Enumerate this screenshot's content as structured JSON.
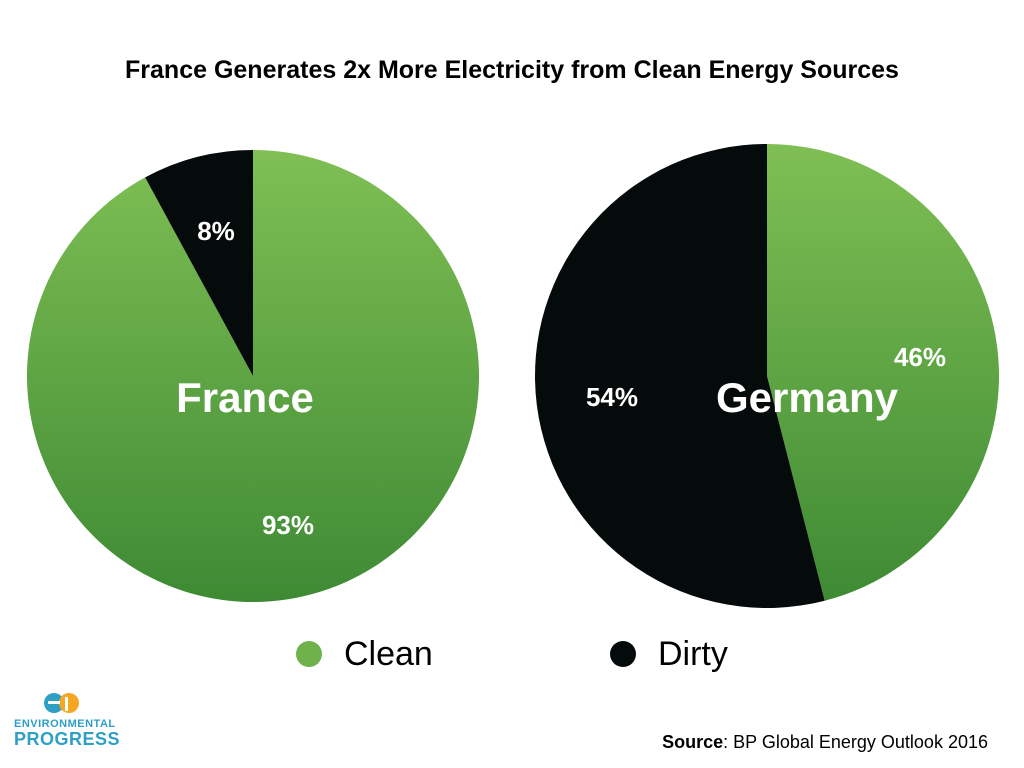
{
  "title": "France Generates 2x More Electricity from Clean Energy Sources",
  "colors": {
    "clean_top": "#7fbf54",
    "clean_bottom": "#3e8a34",
    "dirty": "#050b0a",
    "text_white": "#ffffff",
    "logo_blue": "#2f9fc6",
    "logo_orange": "#f5a623"
  },
  "chart_data": [
    {
      "type": "pie",
      "name": "France",
      "slices": [
        {
          "label": "Clean",
          "value": 93,
          "display": "93%"
        },
        {
          "label": "Dirty",
          "value": 8,
          "display": "8%"
        }
      ]
    },
    {
      "type": "pie",
      "name": "Germany",
      "slices": [
        {
          "label": "Clean",
          "value": 46,
          "display": "46%"
        },
        {
          "label": "Dirty",
          "value": 54,
          "display": "54%"
        }
      ]
    }
  ],
  "legend": [
    {
      "label": "Clean",
      "color": "#6fb24c"
    },
    {
      "label": "Dirty",
      "color": "#050b0a"
    }
  ],
  "logo": {
    "line1": "ENVIRONMENTAL",
    "line2": "PROGRESS",
    "mark": "ep-logo-icon"
  },
  "source": {
    "label": "Source",
    "text": ": BP Global Energy Outlook 2016"
  }
}
